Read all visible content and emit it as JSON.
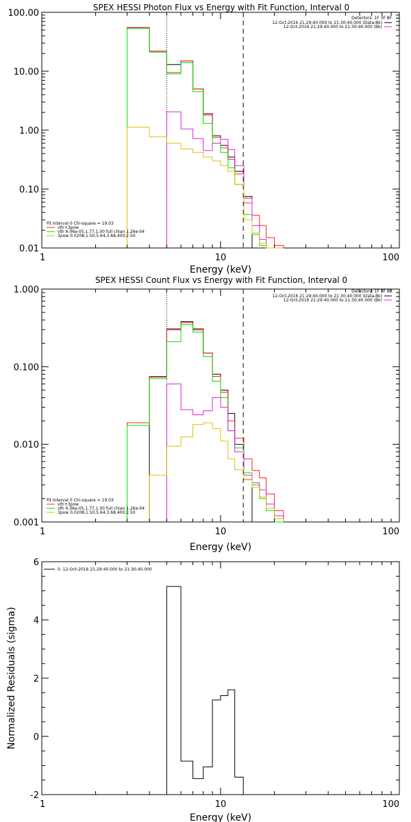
{
  "chart_data": [
    {
      "type": "line",
      "title": "SPEX HESSI Photon Flux vs Energy with Fit Function, Interval 0",
      "xlabel": "Energy (keV)",
      "ylabel": "",
      "xscale": "log",
      "yscale": "log",
      "xlim": [
        1,
        100
      ],
      "ylim": [
        0.01,
        100
      ],
      "xticks": [
        1,
        10,
        100
      ],
      "xtick_labels": [
        "1",
        "10",
        "100"
      ],
      "yticks": [
        0.01,
        0.1,
        1,
        10,
        100
      ],
      "ytick_labels": [
        "0.01",
        "0.10",
        "1.00",
        "10.00",
        "100.00"
      ],
      "vlines": [
        {
          "x": 5.0,
          "style": "dotted",
          "color": "#000000"
        },
        {
          "x": 13.4,
          "style": "dashed",
          "color": "#000000"
        }
      ],
      "edges": [
        3,
        4,
        5,
        6,
        7,
        8,
        9,
        10,
        11,
        12,
        13.5,
        15,
        16.5,
        18,
        20,
        22.5
      ],
      "series": [
        {
          "name": "",
          "color": "#000000",
          "values": [
            55,
            22,
            13,
            15,
            5,
            1.9,
            0.8,
            0.55,
            0.35,
            0.2,
            0.075,
            null,
            null,
            null,
            null
          ]
        },
        {
          "name": "",
          "color": "#ff2020",
          "values": [
            55,
            22,
            9.5,
            15,
            5,
            1.8,
            0.75,
            0.5,
            0.32,
            0.18,
            0.07,
            0.036,
            0.024,
            0.015,
            0.011
          ]
        },
        {
          "name": "",
          "color": "#00dd00",
          "values": [
            53,
            21,
            9,
            14,
            4.5,
            1.3,
            0.6,
            0.42,
            0.23,
            0.12,
            0.037,
            0.017,
            0.011,
            0.01,
            0.009
          ]
        },
        {
          "name": "",
          "color": "#e020e0",
          "values": [
            null,
            null,
            2.05,
            1.05,
            0.72,
            0.45,
            0.6,
            0.7,
            0.47,
            0.25,
            0.058,
            0.024,
            0.014,
            0.01,
            0.009
          ]
        },
        {
          "name": "",
          "color": "#e0c000",
          "values": [
            1.12,
            0.77,
            0.6,
            0.48,
            0.42,
            0.35,
            0.3,
            0.25,
            0.2,
            0.12,
            0.03,
            0.018,
            0.012,
            0.01,
            0.009
          ]
        }
      ],
      "detectors": "Detectors: 1F 3F 8F",
      "legend_top": [
        {
          "text": "12-Oct-2016 21:29:40.000 to 21:30:40.000 (Data-Bk)",
          "color": "#000000"
        },
        {
          "text": "12-Oct-2016 21:29:40.000 to 21:30:40.000 (Bk)",
          "color": "#e020e0"
        }
      ],
      "legend_fit": [
        {
          "text": "Fit Interval 0   Chi-square = 19.03",
          "color": ""
        },
        {
          "text": "vth+3pow",
          "color": "#ff2020"
        },
        {
          "text": "vth 6.06e-05,1.77,1.00   full chian 1.26e-04",
          "color": "#00dd00"
        },
        {
          "text": "3pow 0.0208,1.50,5.64,3.68,400,2.50",
          "color": "#e0c000"
        }
      ]
    },
    {
      "type": "line",
      "title": "SPEX HESSI Count Flux vs Energy with Fit Function, Interval 0",
      "xlabel": "Energy (keV)",
      "ylabel": "",
      "xscale": "log",
      "yscale": "log",
      "xlim": [
        1,
        100
      ],
      "ylim": [
        0.001,
        1
      ],
      "xticks": [
        1,
        10,
        100
      ],
      "xtick_labels": [
        "1",
        "10",
        "100"
      ],
      "yticks": [
        0.001,
        0.01,
        0.1,
        1
      ],
      "ytick_labels": [
        "0.001",
        "0.010",
        "0.100",
        "1.000"
      ],
      "vlines": [
        {
          "x": 5.0,
          "style": "dotted",
          "color": "#000000"
        },
        {
          "x": 13.4,
          "style": "dashed",
          "color": "#000000"
        }
      ],
      "edges": [
        3,
        4,
        5,
        6,
        7,
        8,
        9,
        10,
        11,
        12,
        13.5,
        15,
        16.5,
        18,
        20,
        22.5
      ],
      "series": [
        {
          "name": "",
          "color": "#000000",
          "values": [
            null,
            0.074,
            0.3,
            0.38,
            0.3,
            0.15,
            0.08,
            0.05,
            0.025,
            0.01,
            0.0035,
            null,
            null,
            null,
            null
          ]
        },
        {
          "name": "",
          "color": "#ff2020",
          "values": [
            0.019,
            0.075,
            0.31,
            0.37,
            0.31,
            0.15,
            0.075,
            0.047,
            0.02,
            0.012,
            0.0065,
            0.0046,
            0.0037,
            0.0023,
            0.0014
          ]
        },
        {
          "name": "",
          "color": "#00dd00",
          "values": [
            0.0175,
            0.07,
            0.21,
            0.35,
            0.28,
            0.135,
            0.065,
            0.04,
            0.015,
            0.009,
            0.0043,
            0.003,
            0.002,
            0.0014,
            0.001
          ]
        },
        {
          "name": "",
          "color": "#e020e0",
          "values": [
            null,
            null,
            0.06,
            0.028,
            0.024,
            0.027,
            0.04,
            0.03,
            0.015,
            0.008,
            0.004,
            0.0032,
            0.0026,
            0.0017,
            0.0012
          ]
        },
        {
          "name": "",
          "color": "#e0c000",
          "values": [
            null,
            0.004,
            0.0095,
            0.0125,
            0.018,
            0.019,
            0.016,
            0.011,
            0.0065,
            0.0047,
            0.0035,
            0.0028,
            0.0021,
            0.0015,
            0.0011
          ]
        }
      ],
      "detectors": "Detectors: 1F 3F 8F",
      "legend_top": [
        {
          "text": "12-Oct-2016 21:29:40.000 to 21:30:40.000 (Data-Bk)",
          "color": "#000000"
        },
        {
          "text": "12-Oct-2016 21:29:40.000 to 21:30:40.000 (Bk)",
          "color": "#e020e0"
        }
      ],
      "legend_fit": [
        {
          "text": "Fit Interval 0   Chi-square = 19.03",
          "color": ""
        },
        {
          "text": "vth+3pow",
          "color": "#ff2020"
        },
        {
          "text": "vth 6.06e-05,1.77,1.00   full chian 1.26e-04",
          "color": "#00dd00"
        },
        {
          "text": "3pow 0.0208,1.50,5.64,3.68,400,2.50",
          "color": "#e0c000"
        }
      ]
    },
    {
      "type": "line",
      "title": "",
      "xlabel": "Energy (keV)",
      "ylabel": "Normalized Residuals (sigma)",
      "xscale": "log",
      "yscale": "linear",
      "xlim": [
        1,
        100
      ],
      "ylim": [
        -2,
        6
      ],
      "xticks": [
        1,
        10,
        100
      ],
      "xtick_labels": [
        "1",
        "10",
        "100"
      ],
      "yticks": [
        -2,
        0,
        2,
        4,
        6
      ],
      "ytick_labels": [
        "-2",
        "0",
        "2",
        "4",
        "6"
      ],
      "edges": [
        5,
        6,
        7,
        8,
        9,
        10,
        11,
        12,
        13.4
      ],
      "series": [
        {
          "name": "",
          "color": "#000000",
          "values": [
            5.15,
            -0.85,
            -1.45,
            -1.05,
            1.25,
            1.4,
            1.6,
            -1.4
          ]
        }
      ],
      "legend_top": [
        {
          "text": "0. 12-Oct-2016 21:29:40.000 to 21:30:40.000",
          "color": "#000000"
        }
      ]
    }
  ]
}
